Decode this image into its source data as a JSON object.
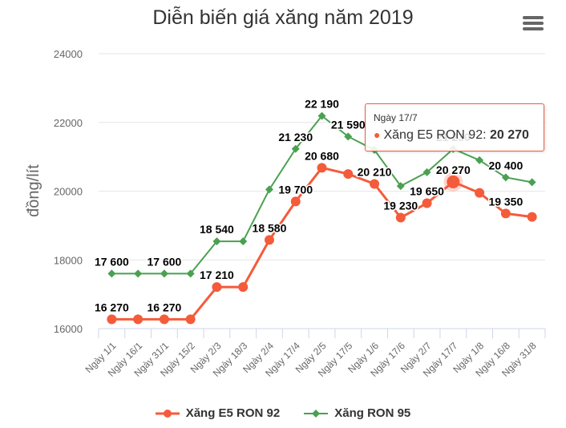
{
  "header": {
    "title": "Diễn biến giá xăng năm 2019",
    "menu_icon": "hamburger-menu-icon"
  },
  "colors": {
    "e5": "#f45b3a",
    "ron95": "#4aa150",
    "grid": "#e6e6e6",
    "text": "#333333",
    "axis_text": "#666666"
  },
  "legend": {
    "items": [
      {
        "label": "Xăng E5 RON 92",
        "color": "#f45b3a",
        "marker": "circle"
      },
      {
        "label": "Xăng RON 95",
        "color": "#4aa150",
        "marker": "diamond"
      }
    ]
  },
  "tooltip": {
    "header": "Ngày 17/7",
    "series": "Xăng E5 RON 92: ",
    "value": "20 270"
  },
  "chart_data": {
    "type": "line",
    "title": "Diễn biến giá xăng năm 2019",
    "xlabel": "",
    "ylabel": "đồng/lít",
    "ylim": [
      16000,
      24000
    ],
    "yticks": [
      16000,
      18000,
      20000,
      22000,
      24000
    ],
    "ytick_labels": [
      "16000",
      "18000",
      "20000",
      "22000",
      "24000"
    ],
    "grid": true,
    "legend_position": "bottom",
    "categories": [
      "Ngày 1/1",
      "Ngày 16/1",
      "Ngày 31/1",
      "Ngày 15/2",
      "Ngày 2/3",
      "Ngày 18/3",
      "Ngày 2/4",
      "Ngày 17/4",
      "Ngày 2/5",
      "Ngày 17/5",
      "Ngày 1/6",
      "Ngày 17/6",
      "Ngày 2/7",
      "Ngày 17/7",
      "Ngày 1/8",
      "Ngày 16/8",
      "Ngày 31/8"
    ],
    "series": [
      {
        "name": "Xăng E5 RON 92",
        "color": "#f45b3a",
        "values": [
          16270,
          16270,
          16270,
          16270,
          17210,
          17210,
          18580,
          19700,
          20680,
          20500,
          20210,
          19230,
          19650,
          20270,
          19950,
          19350,
          19250
        ],
        "labels": [
          "16 270",
          "",
          "16 270",
          "",
          "17 210",
          "",
          "18 580",
          "19 700",
          "20 680",
          "",
          "20 210",
          "19 230",
          "19 650",
          "20 270",
          "",
          "19 350",
          ""
        ]
      },
      {
        "name": "Xăng RON 95",
        "color": "#4aa150",
        "values": [
          17600,
          17600,
          17600,
          17600,
          18540,
          18540,
          20050,
          21230,
          22190,
          21590,
          21200,
          20150,
          20550,
          21230,
          20900,
          20400,
          20260
        ],
        "labels": [
          "17 600",
          "",
          "17 600",
          "",
          "18 540",
          "",
          "",
          "21 230",
          "22 190",
          "21 590",
          "",
          "",
          "",
          "21 230",
          "",
          "20 400",
          ""
        ]
      }
    ],
    "annotations": [
      {
        "type": "tooltip",
        "category": "Ngày 17/7",
        "series": "Xăng E5 RON 92",
        "value": "20 270"
      }
    ]
  }
}
